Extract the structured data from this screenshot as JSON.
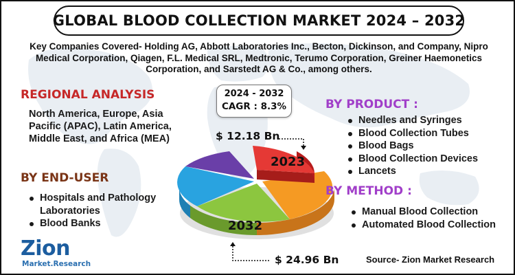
{
  "title": "GLOBAL BLOOD COLLECTION MARKET 2024 – 2032",
  "companies": "Key Companies Covered- Holding AG, Abbott Laboratories Inc., Becton, Dickinson, and Company, Nipro Medical Corporation, Qiagen, F.L. Medical SRL, Medtronic, Terumo Corporation, Greiner Haemonetics Corporation, and Sarstedt AG & Co., among others.",
  "regional": {
    "heading": "REGIONAL ANALYSIS",
    "text": "North America, Europe, Asia Pacific (APAC), Latin America, Middle East, and Africa (MEA)"
  },
  "end_user": {
    "heading": "BY END-USER",
    "items": [
      "Hospitals and Pathology Laboratories",
      "Blood Banks"
    ]
  },
  "cagr": {
    "period": "2024 - 2032",
    "rate": "CAGR : 8.3%"
  },
  "market": {
    "value_2023": "$ 12.18 Bn",
    "year_2023": "2023",
    "value_2032": "$ 24.96 Bn",
    "year_2032": "2032"
  },
  "product": {
    "heading": "BY PRODUCT :",
    "items": [
      "Needles and Syringes",
      "Blood Collection Tubes",
      "Blood Bags",
      "Blood Collection Devices",
      "Lancets"
    ]
  },
  "method": {
    "heading": "BY METHOD :",
    "items": [
      "Manual Blood Collection",
      "Automated Blood Collection"
    ]
  },
  "logo": {
    "name": "Zion",
    "tagline": "Market.Research"
  },
  "source": "Source- Zion Market Research",
  "colors": {
    "slice_red": "#e53935",
    "slice_orange": "#f59a23",
    "slice_green": "#8cc63f",
    "slice_blue": "#29a3e0",
    "slice_purple": "#6a3fa8",
    "regional_heading": "#c62828",
    "end_user_heading": "#7a3416",
    "category_heading": "#a13fc9",
    "logo": "#1c5d9f"
  }
}
